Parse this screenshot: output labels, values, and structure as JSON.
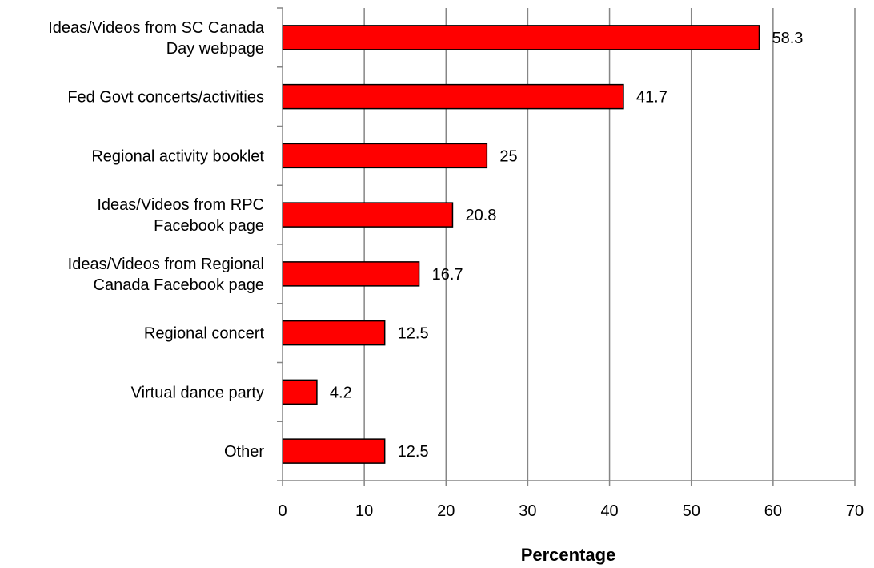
{
  "chart_data": {
    "type": "bar",
    "orientation": "horizontal",
    "categories": [
      "Ideas/Videos from SC Canada Day webpage",
      "Fed Govt concerts/activities",
      "Regional activity booklet",
      "Ideas/Videos from RPC Facebook page",
      "Ideas/Videos from Regional Canada Facebook page",
      "Regional concert",
      "Virtual dance party",
      "Other"
    ],
    "category_label_lines": [
      [
        "Ideas/Videos from SC Canada",
        "Day webpage"
      ],
      [
        "Fed Govt concerts/activities"
      ],
      [
        "Regional activity booklet"
      ],
      [
        "Ideas/Videos from RPC",
        "Facebook page"
      ],
      [
        "Ideas/Videos from Regional",
        "Canada Facebook page"
      ],
      [
        "Regional concert"
      ],
      [
        "Virtual dance party"
      ],
      [
        "Other"
      ]
    ],
    "values": [
      58.3,
      41.7,
      25,
      20.8,
      16.7,
      12.5,
      4.2,
      12.5
    ],
    "data_labels": [
      "58.3",
      "41.7",
      "25",
      "20.8",
      "16.7",
      "12.5",
      "4.2",
      "12.5"
    ],
    "xlabel": "Percentage",
    "ylabel": "",
    "xlim": [
      0,
      70
    ],
    "xticks": [
      0,
      10,
      20,
      30,
      40,
      50,
      60,
      70
    ],
    "grid": "vertical",
    "legend": "none",
    "bar_color": "#ff0000",
    "bar_edge_color": "#000000",
    "grid_color": "#868686"
  }
}
